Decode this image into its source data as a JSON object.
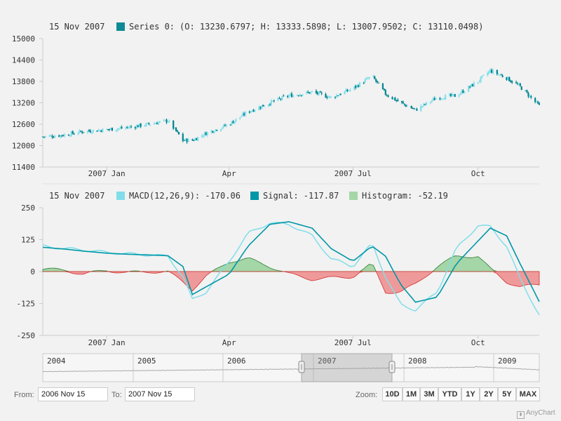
{
  "chart_data": [
    {
      "type": "candlestick",
      "legend": {
        "date": "15 Nov 2007",
        "series_name": "Series 0:",
        "ohlc_text": "(O: 13230.6797; H: 13333.5898; L: 13007.9502; C: 13110.0498)",
        "series_color": "#0e8a94"
      },
      "ylim": [
        11400,
        15000
      ],
      "y_ticks": [
        "15000",
        "14400",
        "13800",
        "13200",
        "12600",
        "12000",
        "11400"
      ],
      "x_ticks": [
        "2007 Jan",
        "Apr",
        "2007 Jul",
        "Oct"
      ],
      "x_range": [
        "2006-11-15",
        "2007-11-15"
      ],
      "x": [
        "2006-11-15",
        "2006-12-01",
        "2006-12-15",
        "2007-01-01",
        "2007-01-15",
        "2007-02-01",
        "2007-02-15",
        "2007-02-26",
        "2007-03-05",
        "2007-03-15",
        "2007-04-01",
        "2007-04-15",
        "2007-05-01",
        "2007-05-15",
        "2007-06-01",
        "2007-06-15",
        "2007-07-01",
        "2007-07-15",
        "2007-07-25",
        "2007-08-05",
        "2007-08-16",
        "2007-09-01",
        "2007-09-15",
        "2007-10-01",
        "2007-10-10",
        "2007-10-22",
        "2007-11-01",
        "2007-11-15"
      ],
      "close": [
        12250,
        12300,
        12400,
        12450,
        12500,
        12600,
        12700,
        12150,
        12150,
        12350,
        12600,
        12950,
        13200,
        13400,
        13500,
        13350,
        13600,
        13950,
        13450,
        13200,
        13000,
        13350,
        13400,
        13800,
        14100,
        13900,
        13650,
        13110
      ],
      "colors": {
        "rising": "#80deea",
        "falling": "#00838f"
      }
    },
    {
      "type": "macd",
      "legend": {
        "date": "15 Nov 2007",
        "macd_text": "MACD(12,26,9): -170.06",
        "signal_text": "Signal: -117.87",
        "histogram_text": "Histogram: -52.19",
        "macd_color": "#80deea",
        "signal_color": "#0097a7",
        "histogram_color": "#a5d6a7"
      },
      "ylim": [
        -250,
        250
      ],
      "y_ticks": [
        "250",
        "125",
        "0",
        "-125",
        "-250"
      ],
      "x_ticks": [
        "2007 Jan",
        "Apr",
        "2007 Jul",
        "Oct"
      ],
      "x": [
        "2006-11-15",
        "2006-12-01",
        "2006-12-15",
        "2007-01-01",
        "2007-01-15",
        "2007-02-01",
        "2007-02-15",
        "2007-02-26",
        "2007-03-05",
        "2007-03-15",
        "2007-04-01",
        "2007-04-15",
        "2007-05-01",
        "2007-05-15",
        "2007-06-01",
        "2007-06-15",
        "2007-07-01",
        "2007-07-15",
        "2007-07-25",
        "2007-08-05",
        "2007-08-16",
        "2007-09-01",
        "2007-09-15",
        "2007-10-01",
        "2007-10-10",
        "2007-10-22",
        "2007-11-01",
        "2007-11-15"
      ],
      "macd": [
        100,
        90,
        85,
        75,
        70,
        65,
        60,
        -20,
        -110,
        -80,
        40,
        150,
        190,
        185,
        140,
        50,
        20,
        110,
        -20,
        -130,
        -150,
        -80,
        90,
        180,
        175,
        100,
        -30,
        -170
      ],
      "signal": [
        95,
        88,
        80,
        72,
        68,
        65,
        62,
        20,
        -90,
        -60,
        -10,
        100,
        185,
        195,
        170,
        90,
        40,
        100,
        60,
        -50,
        -120,
        -100,
        30,
        120,
        170,
        140,
        30,
        -118
      ],
      "histogram": [
        10,
        5,
        -10,
        5,
        -5,
        0,
        -2,
        -40,
        -70,
        -20,
        40,
        50,
        20,
        -10,
        -30,
        -25,
        -20,
        30,
        -80,
        -80,
        -50,
        20,
        60,
        60,
        10,
        -40,
        -60,
        -52
      ],
      "hist_colors": {
        "positive": "#a5d6a7",
        "negative": "#ef9a9a"
      }
    }
  ],
  "scroller": {
    "year_labels": [
      "2004",
      "2005",
      "2006",
      "2007",
      "2008",
      "2009"
    ],
    "window_start": "2006-11-15",
    "window_end": "2007-11-15"
  },
  "range_selector": {
    "from_label": "From:",
    "from_value": "2006 Nov 15",
    "to_label": "To:",
    "to_value": "2007 Nov 15"
  },
  "zoom": {
    "label": "Zoom:",
    "buttons": [
      "10D",
      "1M",
      "3M",
      "YTD",
      "1Y",
      "2Y",
      "5Y",
      "MAX"
    ]
  },
  "credits": "AnyChart"
}
